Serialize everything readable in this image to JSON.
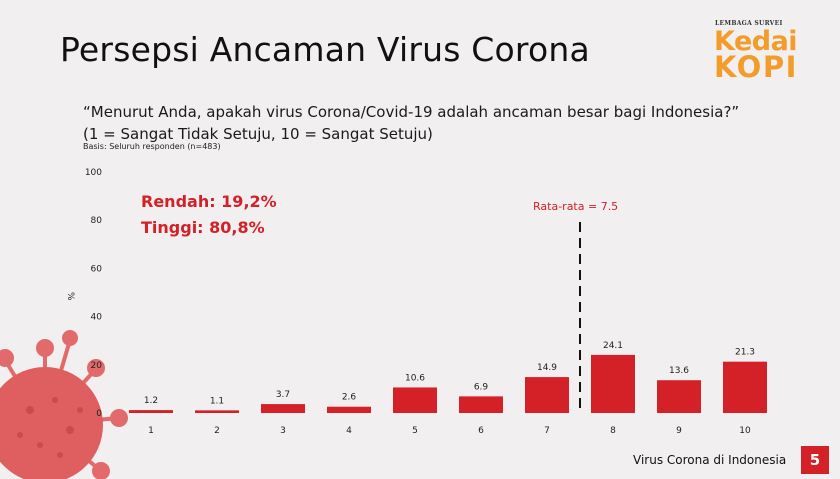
{
  "title": "Persepsi Ancaman Virus Corona",
  "logo": {
    "small_text": "LEMBAGA SURVEI",
    "word1": "Kedai",
    "word2": "KOPI"
  },
  "question": {
    "line1": "“Menurut Anda, apakah virus Corona/Covid-19 adalah ancaman besar bagi Indonesia?”",
    "line2": "(1 = Sangat Tidak Setuju, 10 = Sangat Setuju)",
    "basis": "Basis: Seluruh responden (n=483)"
  },
  "summary": {
    "low": "Rendah: 19,2%",
    "high": "Tinggi: 80,8%"
  },
  "average_label": "Rata-rata = 7.5",
  "footer": {
    "text": "Virus Corona di Indonesia",
    "page": "5"
  },
  "colors": {
    "bar": "#d42027",
    "accent": "#d42027",
    "logo": "#f39c2b"
  },
  "chart_data": {
    "type": "bar",
    "categories": [
      "1",
      "2",
      "3",
      "4",
      "5",
      "6",
      "7",
      "8",
      "9",
      "10"
    ],
    "values": [
      1.2,
      1.1,
      3.7,
      2.6,
      10.6,
      6.9,
      14.9,
      24.1,
      13.6,
      21.3
    ],
    "value_labels": [
      "1.2",
      "1.1",
      "3.7",
      "2.6",
      "10.6",
      "6.9",
      "14.9",
      "24.1",
      "13.6",
      "21.3"
    ],
    "yticks": [
      0,
      20,
      40,
      60,
      80,
      100
    ],
    "ylim": [
      0,
      100
    ],
    "ylabel": "%",
    "average": 7.5,
    "grid": false
  }
}
